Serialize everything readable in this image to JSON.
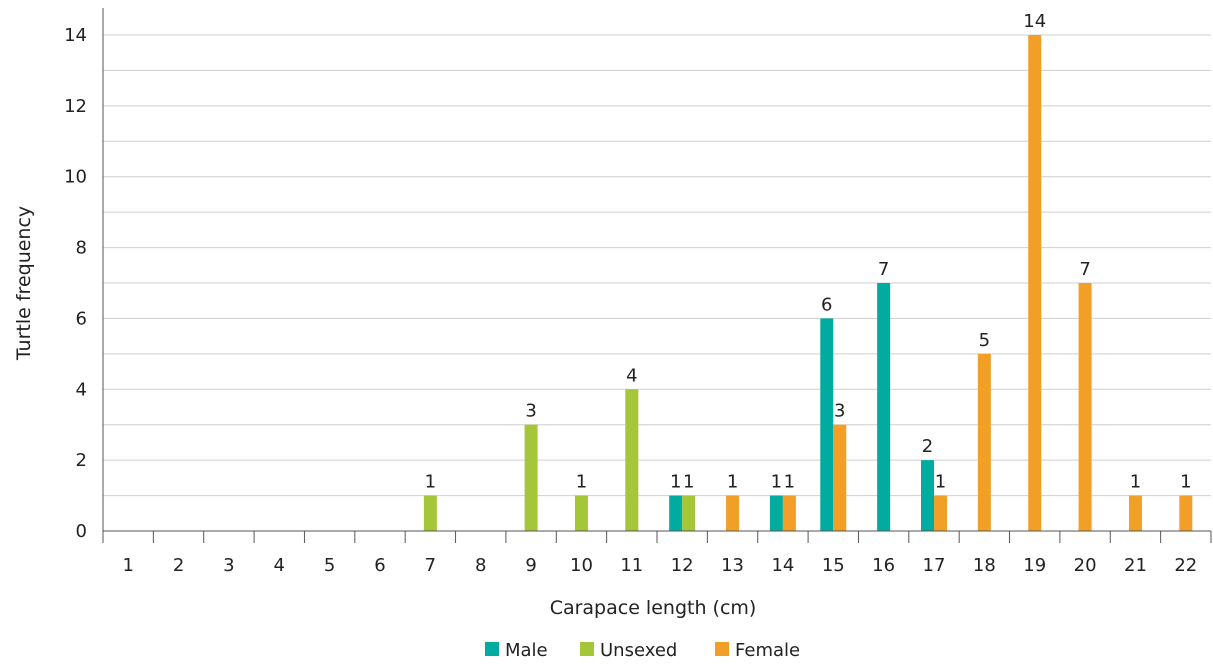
{
  "chart_data": {
    "type": "bar",
    "title": "",
    "xlabel": "Carapace length (cm)",
    "ylabel": "Turtle frequency",
    "categories": [
      "1",
      "2",
      "3",
      "4",
      "5",
      "6",
      "7",
      "8",
      "9",
      "10",
      "11",
      "12",
      "13",
      "14",
      "15",
      "16",
      "17",
      "18",
      "19",
      "20",
      "21",
      "22"
    ],
    "ylim": [
      0,
      14
    ],
    "yticks": [
      0,
      2,
      4,
      6,
      8,
      10,
      12,
      14
    ],
    "grid": true,
    "legend_position": "bottom",
    "series": [
      {
        "name": "Male",
        "color": "#00ab9f",
        "values": [
          0,
          0,
          0,
          0,
          0,
          0,
          0,
          0,
          0,
          0,
          0,
          1,
          0,
          1,
          6,
          7,
          2,
          0,
          0,
          0,
          0,
          0
        ]
      },
      {
        "name": "Unsexed",
        "color": "#a6c63a",
        "values": [
          0,
          0,
          0,
          0,
          0,
          0,
          1,
          0,
          3,
          1,
          4,
          1,
          0,
          0,
          0,
          0,
          0,
          0,
          0,
          0,
          0,
          0
        ]
      },
      {
        "name": "Female",
        "color": "#f19f27",
        "values": [
          0,
          0,
          0,
          0,
          0,
          0,
          0,
          0,
          0,
          0,
          0,
          0,
          1,
          1,
          3,
          0,
          1,
          5,
          14,
          7,
          1,
          1
        ]
      }
    ]
  }
}
